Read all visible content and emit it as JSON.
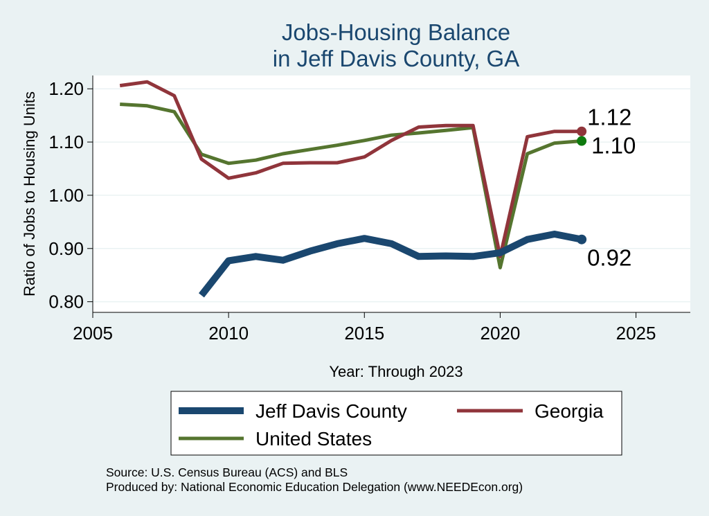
{
  "chart_data": {
    "type": "line",
    "title": "Jobs-Housing Balance",
    "subtitle": "in Jeff Davis County, GA",
    "xlabel": "Year: Through 2023",
    "ylabel": "Ratio of Jobs to Housing Units",
    "xlim": [
      2005,
      2027
    ],
    "ylim": [
      0.78,
      1.225
    ],
    "xticks": [
      2005,
      2010,
      2015,
      2020,
      2025
    ],
    "yticks": [
      0.8,
      0.9,
      1.0,
      1.1,
      1.2
    ],
    "ytick_labels": [
      "0.80",
      "0.90",
      "1.00",
      "1.10",
      "1.20"
    ],
    "grid": true,
    "series": [
      {
        "name": "Jeff Davis County",
        "color": "#1a476f",
        "end_label": "0.92",
        "x": [
          2009,
          2010,
          2011,
          2012,
          2013,
          2014,
          2015,
          2016,
          2017,
          2018,
          2019,
          2020,
          2021,
          2022,
          2023
        ],
        "values": [
          0.812,
          0.877,
          0.885,
          0.878,
          0.895,
          0.909,
          0.919,
          0.909,
          0.885,
          0.886,
          0.885,
          0.892,
          0.917,
          0.927,
          0.917
        ]
      },
      {
        "name": "Georgia",
        "color": "#90353b",
        "end_label": "1.12",
        "x": [
          2006,
          2007,
          2008,
          2009,
          2010,
          2011,
          2012,
          2013,
          2014,
          2015,
          2016,
          2017,
          2018,
          2019,
          2020,
          2021,
          2022,
          2023
        ],
        "values": [
          1.206,
          1.213,
          1.187,
          1.068,
          1.032,
          1.042,
          1.06,
          1.061,
          1.061,
          1.072,
          1.103,
          1.128,
          1.131,
          1.131,
          0.885,
          1.11,
          1.12,
          1.12
        ]
      },
      {
        "name": "United States",
        "color": "#55752f",
        "end_label": "1.10",
        "x": [
          2006,
          2007,
          2008,
          2009,
          2010,
          2011,
          2012,
          2013,
          2014,
          2015,
          2016,
          2017,
          2018,
          2019,
          2020,
          2021,
          2022,
          2023
        ],
        "values": [
          1.171,
          1.168,
          1.157,
          1.077,
          1.06,
          1.066,
          1.078,
          1.086,
          1.094,
          1.103,
          1.113,
          1.117,
          1.122,
          1.127,
          0.864,
          1.078,
          1.098,
          1.102
        ]
      }
    ],
    "legend": {
      "position": "bottom",
      "entries": [
        "Jeff Davis County",
        "Georgia",
        "United States"
      ]
    },
    "notes": [
      "Source: U.S. Census Bureau (ACS) and BLS",
      "Produced by: National Economic Education Delegation (www.NEEDEcon.org)"
    ]
  },
  "colors": {
    "background": "#eaf2f3",
    "plot_background": "#ffffff",
    "grid": "#eaf2f3",
    "end_dot_us": "#0e7a0e"
  }
}
